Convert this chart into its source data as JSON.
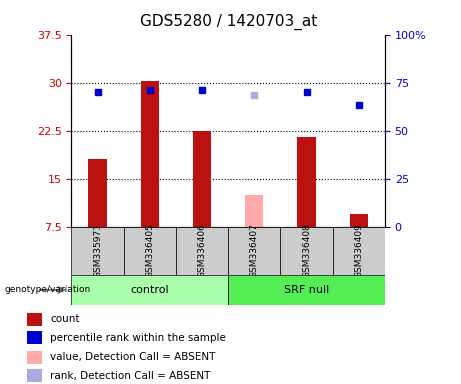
{
  "title": "GDS5280 / 1420703_at",
  "samples": [
    "GSM335971",
    "GSM336405",
    "GSM336406",
    "GSM336407",
    "GSM336408",
    "GSM336409"
  ],
  "red_bars": [
    18.0,
    30.2,
    22.5,
    null,
    21.5,
    9.5
  ],
  "pink_bars": [
    null,
    null,
    null,
    12.5,
    null,
    null
  ],
  "blue_squares": [
    28.5,
    28.8,
    28.8,
    null,
    28.5,
    26.5
  ],
  "light_blue_squares": [
    null,
    null,
    null,
    28.0,
    null,
    null
  ],
  "ylim_left": [
    7.5,
    37.5
  ],
  "ylim_right": [
    0,
    100
  ],
  "yticks_left": [
    7.5,
    15.0,
    22.5,
    30.0,
    37.5
  ],
  "yticks_right": [
    0,
    25,
    50,
    75,
    100
  ],
  "ytick_labels_left": [
    "7.5",
    "15",
    "22.5",
    "30",
    "37.5"
  ],
  "ytick_labels_right": [
    "0",
    "25",
    "50",
    "75",
    "100%"
  ],
  "left_tick_color": "#cc0000",
  "right_tick_color": "#0000cc",
  "bar_width": 0.35,
  "red_color": "#bb1111",
  "pink_color": "#ffaaaa",
  "blue_color": "#0000cc",
  "light_blue_color": "#aaaadd",
  "control_color": "#aaffaa",
  "srf_color": "#55ee55",
  "bg_color": "#cccccc",
  "grid_ticks": [
    15.0,
    22.5,
    30.0
  ],
  "legend_items": [
    {
      "label": "count",
      "color": "#bb1111"
    },
    {
      "label": "percentile rank within the sample",
      "color": "#0000cc"
    },
    {
      "label": "value, Detection Call = ABSENT",
      "color": "#ffaaaa"
    },
    {
      "label": "rank, Detection Call = ABSENT",
      "color": "#aaaadd"
    }
  ]
}
